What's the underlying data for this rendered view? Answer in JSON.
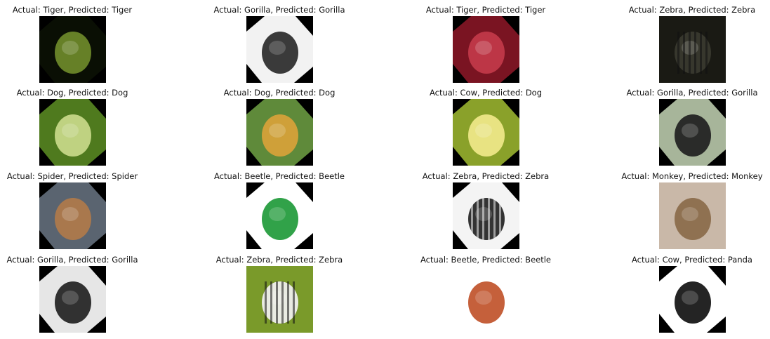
{
  "panels": [
    {
      "label": "Actual: Tiger, Predicted: Tiger",
      "image": "tiger-photo",
      "bg": "#0a0f04",
      "fg": "#6f8a2a",
      "rotated": true
    },
    {
      "label": "Actual: Gorilla, Predicted: Gorilla",
      "image": "gorilla-photo",
      "bg": "#f2f2f2",
      "fg": "#2a2a2a",
      "rotated": true
    },
    {
      "label": "Actual: Tiger, Predicted: Tiger",
      "image": "tiger-photo",
      "bg": "#7a1422",
      "fg": "#c23a4a",
      "rotated": true
    },
    {
      "label": "Actual: Zebra, Predicted: Zebra",
      "image": "zebra-photo",
      "bg": "#1a1a14",
      "fg": "#3a3a30",
      "rotated": false
    },
    {
      "label": "Actual: Dog, Predicted: Dog",
      "image": "dog-photo",
      "bg": "#4f7a1e",
      "fg": "#c9d98a",
      "rotated": true
    },
    {
      "label": "Actual: Dog, Predicted: Dog",
      "image": "dog-photo",
      "bg": "#5f8a3a",
      "fg": "#d9a23a",
      "rotated": true
    },
    {
      "label": "Actual: Cow, Predicted: Dog",
      "image": "cow-photo",
      "bg": "#8aa12a",
      "fg": "#f0e88a",
      "rotated": true
    },
    {
      "label": "Actual: Gorilla, Predicted: Gorilla",
      "image": "gorilla-photo",
      "bg": "#a7b59a",
      "fg": "#1f1f1f",
      "rotated": true
    },
    {
      "label": "Actual: Spider, Predicted: Spider",
      "image": "spider-photo",
      "bg": "#5a6470",
      "fg": "#b07a4a",
      "rotated": true
    },
    {
      "label": "Actual: Beetle, Predicted: Beetle",
      "image": "beetle-photo",
      "bg": "#ffffff",
      "fg": "#1f9a3a",
      "rotated": true
    },
    {
      "label": "Actual: Zebra, Predicted: Zebra",
      "image": "zebra-photo",
      "bg": "#f4f4f4",
      "fg": "#222222",
      "rotated": true
    },
    {
      "label": "Actual: Monkey, Predicted: Monkey",
      "image": "monkey-photo",
      "bg": "#c9b8a8",
      "fg": "#8a6a4a",
      "rotated": false
    },
    {
      "label": "Actual: Gorilla, Predicted: Gorilla",
      "image": "gorilla-photo",
      "bg": "#e6e6e6",
      "fg": "#222222",
      "rotated": true
    },
    {
      "label": "Actual: Zebra, Predicted: Zebra",
      "image": "zebra-photo",
      "bg": "#7a9a2a",
      "fg": "#f2f2f2",
      "rotated": false
    },
    {
      "label": "Actual: Beetle, Predicted: Beetle",
      "image": "beetle-photo",
      "bg": "#ffffff",
      "fg": "#c0532a",
      "rotated": false
    },
    {
      "label": "Actual: Cow, Predicted: Panda",
      "image": "cow-photo",
      "bg": "#ffffff",
      "fg": "#111111",
      "rotated": true
    }
  ]
}
